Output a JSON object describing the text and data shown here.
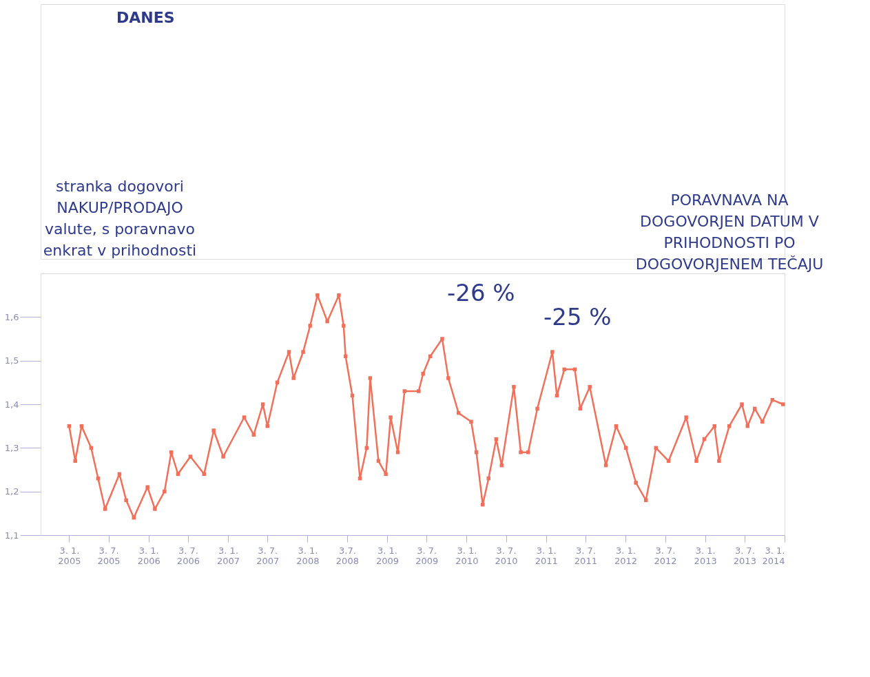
{
  "chart_data": {
    "type": "line",
    "marker": "square",
    "line_style": "solid",
    "grid": false,
    "annotations": [
      "DANES",
      "stranka dogovori\nNAKUP/PRODAJO\nvalute, s poravnavo\nenkrat v prihodnosti",
      "PORAVNAVA NA\nDOGOVORJEN DATUM V\nPRIHODNOSTI PO\nDOGOVORJENEM TEČAJU",
      "-26 %",
      "-25 %"
    ],
    "x": [
      "2005-01-03",
      "2005-01-31",
      "2005-03-01",
      "2005-04-14",
      "2005-05-16",
      "2005-06-17",
      "2005-08-22",
      "2005-09-22",
      "2005-10-27",
      "2005-12-29",
      "2006-02-01",
      "2006-03-17",
      "2006-04-17",
      "2006-05-18",
      "2006-07-14",
      "2006-09-15",
      "2006-10-29",
      "2006-12-12",
      "2007-03-18",
      "2007-05-01",
      "2007-06-12",
      "2007-07-03",
      "2007-08-17",
      "2007-10-10",
      "2007-10-31",
      "2007-12-14",
      "2008-01-15",
      "2008-02-18",
      "2008-04-03",
      "2008-05-26",
      "2008-06-17",
      "2008-06-26",
      "2008-07-27",
      "2008-08-31",
      "2008-10-01",
      "2008-10-17",
      "2008-11-24",
      "2008-12-28",
      "2009-01-19",
      "2009-02-21",
      "2009-03-24",
      "2009-05-28",
      "2009-06-17",
      "2009-07-20",
      "2009-09-13",
      "2009-10-11",
      "2009-11-27",
      "2010-01-24",
      "2010-02-17",
      "2010-03-18",
      "2010-04-14",
      "2010-05-19",
      "2010-06-13",
      "2010-08-08",
      "2010-09-09",
      "2010-10-13",
      "2010-11-24",
      "2011-02-01",
      "2011-02-22",
      "2011-03-28",
      "2011-05-15",
      "2011-06-09",
      "2011-07-23",
      "2011-10-05",
      "2011-11-21",
      "2012-01-05",
      "2012-02-20",
      "2012-04-06",
      "2012-05-22",
      "2012-07-19",
      "2012-10-08",
      "2012-11-24",
      "2012-12-30",
      "2013-02-15",
      "2013-03-08",
      "2013-04-24",
      "2013-06-21",
      "2013-07-17",
      "2013-08-19",
      "2013-09-23",
      "2013-11-08",
      "2013-12-27"
    ],
    "series": [
      {
        "color": "#f07059",
        "values": [
          1.35,
          1.27,
          1.35,
          1.3,
          1.23,
          1.16,
          1.24,
          1.18,
          1.14,
          1.21,
          1.16,
          1.2,
          1.29,
          1.24,
          1.28,
          1.24,
          1.34,
          1.28,
          1.37,
          1.33,
          1.4,
          1.35,
          1.45,
          1.52,
          1.46,
          1.52,
          1.58,
          1.65,
          1.59,
          1.65,
          1.58,
          1.51,
          1.42,
          1.23,
          1.3,
          1.46,
          1.27,
          1.24,
          1.37,
          1.29,
          1.43,
          1.43,
          1.47,
          1.51,
          1.55,
          1.46,
          1.38,
          1.36,
          1.29,
          1.17,
          1.23,
          1.32,
          1.26,
          1.44,
          1.29,
          1.29,
          1.39,
          1.52,
          1.42,
          1.48,
          1.48,
          1.39,
          1.44,
          1.26,
          1.35,
          1.3,
          1.22,
          1.18,
          1.3,
          1.27,
          1.37,
          1.27,
          1.32,
          1.35,
          1.27,
          1.35,
          1.4,
          1.35,
          1.39,
          1.36,
          1.41,
          1.4
        ]
      }
    ],
    "xlim": [
      "2004-08-25",
      "2014-01-03"
    ],
    "xticks": [
      {
        "value": "2005-01-03",
        "label": "3. 1.\n2005"
      },
      {
        "value": "2005-07-03",
        "label": "3. 7.\n2005"
      },
      {
        "value": "2006-01-03",
        "label": "3. 1.\n2006"
      },
      {
        "value": "2006-07-03",
        "label": "3. 7.\n2006"
      },
      {
        "value": "2007-01-03",
        "label": "3. 1.\n2007"
      },
      {
        "value": "2007-07-03",
        "label": "3. 7.\n2007"
      },
      {
        "value": "2008-01-03",
        "label": "3. 1.\n2008"
      },
      {
        "value": "2008-07-03",
        "label": "3.7.\n2008"
      },
      {
        "value": "2009-01-03",
        "label": "3. 1.\n2009"
      },
      {
        "value": "2009-07-03",
        "label": "3. 7.\n2009"
      },
      {
        "value": "2010-01-03",
        "label": "3. 1.\n2010"
      },
      {
        "value": "2010-07-03",
        "label": "3. 7.\n2010"
      },
      {
        "value": "2011-01-03",
        "label": "3. 1.\n2011"
      },
      {
        "value": "2011-07-03",
        "label": "3. 7.\n2011"
      },
      {
        "value": "2012-01-03",
        "label": "3. 1.\n2012"
      },
      {
        "value": "2012-07-03",
        "label": "3. 7.\n2012"
      },
      {
        "value": "2013-01-03",
        "label": "3. 1.\n2013"
      },
      {
        "value": "2013-07-03",
        "label": "3. 7.\n2013"
      },
      {
        "value": "2014-01-03",
        "label": "3. 1.\n2014"
      }
    ],
    "ylim": [
      1.1,
      1.7
    ],
    "yticks": [
      {
        "value": 1.1,
        "label": "1,1"
      },
      {
        "value": 1.2,
        "label": "1,2"
      },
      {
        "value": 1.3,
        "label": "1,3"
      },
      {
        "value": 1.4,
        "label": "1,4"
      },
      {
        "value": 1.5,
        "label": "1,5"
      },
      {
        "value": 1.6,
        "label": "1,6"
      }
    ]
  }
}
